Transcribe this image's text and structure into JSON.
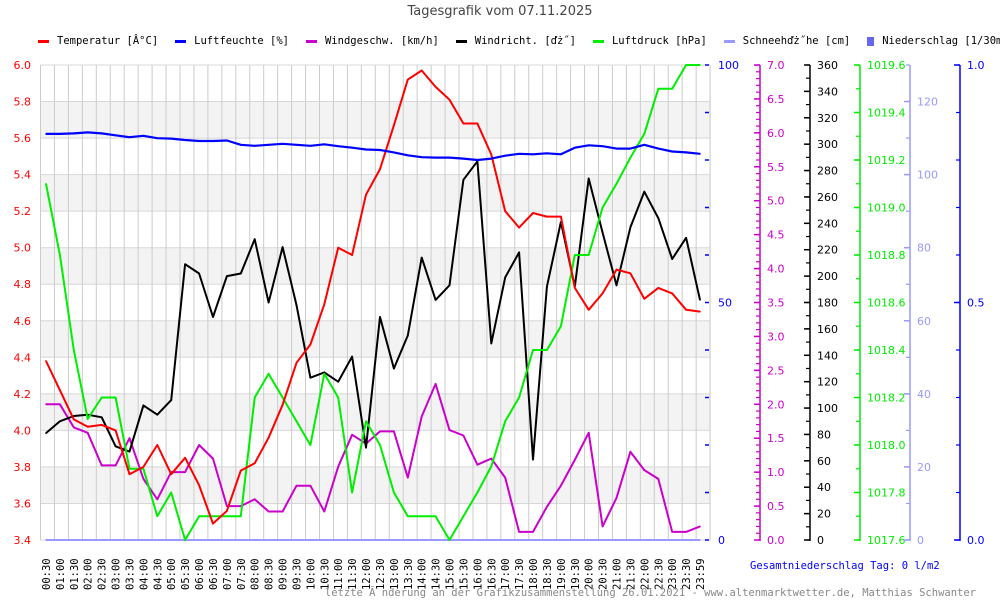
{
  "title": "Tagesgrafik vom 07.11.2025",
  "legend": [
    {
      "label": "Temperatur [Â°C]",
      "color": "#ff0000",
      "marker": "line"
    },
    {
      "label": "Luftfeuchte [%]",
      "color": "#0000ff",
      "marker": "line"
    },
    {
      "label": "Windgeschw. [km/h]",
      "color": "#cc00cc",
      "marker": "line"
    },
    {
      "label": "Windricht. [ďż˝]",
      "color": "#000000",
      "marker": "line"
    },
    {
      "label": "Luftdruck [hPa]",
      "color": "#00ee00",
      "marker": "line"
    },
    {
      "label": "Schneehďż˝he [cm]",
      "color": "#9999ff",
      "marker": "line"
    },
    {
      "label": "Niederschlag [1/30min]",
      "color": "#6666ee",
      "marker": "box"
    }
  ],
  "total_precip": "Gesamtniederschlag Tag: 0 l/m2",
  "footer": "letzte Ă nderung an der Grafikzusammenstellung 26.01.2021 - www.altenmarktwetter.de, Matthias Schwanter",
  "chart_data": {
    "type": "line",
    "title": "Tagesgrafik vom 07.11.2025",
    "x": [
      "00:30",
      "01:00",
      "01:30",
      "02:00",
      "02:30",
      "03:00",
      "03:30",
      "04:00",
      "04:30",
      "05:00",
      "05:30",
      "06:00",
      "06:30",
      "07:00",
      "07:30",
      "08:00",
      "08:30",
      "09:00",
      "09:30",
      "10:00",
      "10:30",
      "11:00",
      "11:30",
      "12:00",
      "12:30",
      "13:00",
      "13:30",
      "14:00",
      "14:30",
      "15:00",
      "15:30",
      "16:00",
      "16:30",
      "17:00",
      "17:30",
      "18:00",
      "18:30",
      "19:00",
      "19:30",
      "20:00",
      "20:30",
      "21:00",
      "21:30",
      "22:00",
      "22:30",
      "23:00",
      "23:30",
      "23:59"
    ],
    "grid": true,
    "series": [
      {
        "name": "Temperatur [Â°C]",
        "color": "#ff0000",
        "axis": "temp",
        "values": [
          4.38,
          4.22,
          4.06,
          4.02,
          4.03,
          4.0,
          3.76,
          3.8,
          3.92,
          3.76,
          3.85,
          3.7,
          3.49,
          3.56,
          3.78,
          3.82,
          3.96,
          4.14,
          4.37,
          4.47,
          4.69,
          5.0,
          4.96,
          5.29,
          5.43,
          5.67,
          5.92,
          5.97,
          5.88,
          5.81,
          5.68,
          5.68,
          5.51,
          5.2,
          5.11,
          5.19,
          5.17,
          5.17,
          4.78,
          4.66,
          4.75,
          4.88,
          4.86,
          4.72,
          4.78,
          4.75,
          4.66,
          4.65
        ]
      },
      {
        "name": "Luftfeuchte [%]",
        "color": "#0000ff",
        "axis": "hum",
        "values": [
          85.5,
          85.5,
          85.6,
          85.8,
          85.6,
          85.2,
          84.8,
          85.1,
          84.6,
          84.5,
          84.2,
          84.0,
          84.0,
          84.1,
          83.2,
          83.0,
          83.2,
          83.4,
          83.2,
          83.0,
          83.3,
          82.9,
          82.6,
          82.2,
          82.1,
          81.6,
          81.0,
          80.6,
          80.5,
          80.5,
          80.3,
          80.0,
          80.3,
          80.9,
          81.3,
          81.2,
          81.4,
          81.2,
          82.6,
          83.1,
          82.9,
          82.4,
          82.4,
          83.2,
          82.4,
          81.8,
          81.6,
          81.3
        ]
      },
      {
        "name": "Windgeschw. [km/h]",
        "color": "#cc00cc",
        "axis": "wind",
        "values": [
          2.0,
          2.0,
          1.66,
          1.58,
          1.1,
          1.1,
          1.5,
          0.9,
          0.6,
          1.0,
          1.0,
          1.4,
          1.2,
          0.5,
          0.5,
          0.6,
          0.42,
          0.42,
          0.8,
          0.8,
          0.42,
          1.08,
          1.55,
          1.42,
          1.6,
          1.6,
          0.92,
          1.82,
          2.3,
          1.62,
          1.54,
          1.11,
          1.2,
          0.92,
          0.12,
          0.12,
          0.49,
          0.8,
          1.18,
          1.58,
          0.2,
          0.62,
          1.3,
          1.03,
          0.9,
          0.12,
          0.12,
          0.2
        ]
      },
      {
        "name": "Windricht. [ďż˝]",
        "color": "#000000",
        "axis": "dir",
        "values": [
          81,
          90,
          94,
          95,
          93,
          71,
          67,
          102,
          95,
          106,
          209,
          202,
          169,
          200,
          202,
          228,
          180,
          222,
          178,
          123,
          127,
          120,
          139,
          70,
          169,
          130,
          155,
          214,
          182,
          193,
          273,
          287,
          149,
          199,
          218,
          61,
          192,
          241,
          192,
          274,
          233,
          193,
          237,
          264,
          244,
          213,
          229,
          182
        ]
      },
      {
        "name": "Luftdruck [hPa]",
        "color": "#00ee00",
        "axis": "press",
        "values": [
          1019.1,
          1018.8,
          1018.4,
          1018.11,
          1018.2,
          1018.2,
          1017.9,
          1017.9,
          1017.7,
          1017.8,
          1017.6,
          1017.7,
          1017.7,
          1017.7,
          1017.7,
          1018.2,
          1018.3,
          1018.2,
          1018.1,
          1018.0,
          1018.3,
          1018.2,
          1017.8,
          1018.1,
          1018.0,
          1017.8,
          1017.7,
          1017.7,
          1017.7,
          1017.6,
          1017.7,
          1017.8,
          1017.91,
          1018.1,
          1018.2,
          1018.4,
          1018.4,
          1018.5,
          1018.8,
          1018.8,
          1019.0,
          1019.1,
          1019.21,
          1019.31,
          1019.5,
          1019.5,
          1019.6,
          1019.6
        ]
      },
      {
        "name": "Schneehďż˝he [cm]",
        "color": "#9999ff",
        "axis": "snow",
        "values": [
          0,
          0,
          0,
          0,
          0,
          0,
          0,
          0,
          0,
          0,
          0,
          0,
          0,
          0,
          0,
          0,
          0,
          0,
          0,
          0,
          0,
          0,
          0,
          0,
          0,
          0,
          0,
          0,
          0,
          0,
          0,
          0,
          0,
          0,
          0,
          0,
          0,
          0,
          0,
          0,
          0,
          0,
          0,
          0,
          0,
          0,
          0,
          0
        ]
      },
      {
        "name": "Niederschlag [1/30min]",
        "color": "#6666ee",
        "axis": "precip",
        "values": [
          0,
          0,
          0,
          0,
          0,
          0,
          0,
          0,
          0,
          0,
          0,
          0,
          0,
          0,
          0,
          0,
          0,
          0,
          0,
          0,
          0,
          0,
          0,
          0,
          0,
          0,
          0,
          0,
          0,
          0,
          0,
          0,
          0,
          0,
          0,
          0,
          0,
          0,
          0,
          0,
          0,
          0,
          0,
          0,
          0,
          0,
          0,
          0
        ]
      }
    ],
    "axes": {
      "temp": {
        "range": [
          3.4,
          6.0
        ],
        "ticks": [
          "3.4",
          "3.6",
          "3.8",
          "4.0",
          "4.2",
          "4.4",
          "4.6",
          "4.8",
          "5.0",
          "5.2",
          "5.4",
          "5.6",
          "5.8",
          "6.0"
        ],
        "color": "#ff0000"
      },
      "hum": {
        "range": [
          0,
          100
        ],
        "ticks": [
          "0",
          "50",
          "100"
        ],
        "color": "#0000ff"
      },
      "wind": {
        "range": [
          0,
          7.0
        ],
        "ticks": [
          "0.0",
          "0.5",
          "1.0",
          "1.5",
          "2.0",
          "2.5",
          "3.0",
          "3.5",
          "4.0",
          "4.5",
          "5.0",
          "5.5",
          "6.0",
          "6.5",
          "7.0"
        ],
        "color": "#cc00cc"
      },
      "dir": {
        "range": [
          0,
          360
        ],
        "ticks": [
          "0",
          "20",
          "40",
          "60",
          "80",
          "100",
          "120",
          "140",
          "160",
          "180",
          "200",
          "220",
          "240",
          "260",
          "280",
          "300",
          "320",
          "340",
          "360"
        ],
        "color": "#000000"
      },
      "press": {
        "range": [
          1017.6,
          1019.6
        ],
        "ticks": [
          "1017.6",
          "1017.8",
          "1018.0",
          "1018.2",
          "1018.4",
          "1018.6",
          "1018.8",
          "1019.0",
          "1019.2",
          "1019.4",
          "1019.6"
        ],
        "color": "#00ee00"
      },
      "snow": {
        "range": [
          0,
          130
        ],
        "ticks": [
          "0",
          "20",
          "40",
          "60",
          "80",
          "100",
          "120"
        ],
        "color": "#9999ff"
      },
      "precip": {
        "range": [
          0,
          1.0
        ],
        "ticks": [
          "0.0",
          "0.5",
          "1.0"
        ],
        "color": "#0000ff"
      }
    }
  }
}
